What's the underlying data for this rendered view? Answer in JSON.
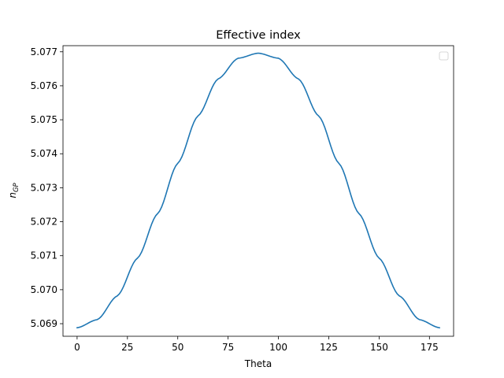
{
  "chart_data": {
    "type": "line",
    "title": "Effective index",
    "xlabel": "Theta",
    "ylabel_base": "n",
    "ylabel_sub": "GP",
    "xlim": [
      -7,
      187
    ],
    "ylim": [
      5.06863,
      5.07718
    ],
    "xticks": [
      0,
      25,
      50,
      75,
      100,
      125,
      150,
      175
    ],
    "xtick_labels": [
      "0",
      "25",
      "50",
      "75",
      "100",
      "125",
      "150",
      "175"
    ],
    "yticks": [
      5.069,
      5.07,
      5.071,
      5.072,
      5.073,
      5.074,
      5.075,
      5.076,
      5.077
    ],
    "ytick_labels": [
      "5.069",
      "5.070",
      "5.071",
      "5.072",
      "5.073",
      "5.074",
      "5.075",
      "5.076",
      "5.077"
    ],
    "grid": false,
    "legend": {
      "placement": "top-right",
      "entries": []
    },
    "series": [
      {
        "color": "#1f77b4",
        "x": [
          0,
          10,
          20,
          30,
          40,
          50,
          60,
          70,
          80,
          90,
          100,
          110,
          120,
          130,
          140,
          150,
          160,
          170,
          180
        ],
        "y": [
          5.06888,
          5.06912,
          5.06982,
          5.07093,
          5.07224,
          5.07372,
          5.07511,
          5.0762,
          5.07681,
          5.07696,
          5.07681,
          5.0762,
          5.07511,
          5.07372,
          5.07224,
          5.07093,
          5.06982,
          5.06912,
          5.06888
        ]
      }
    ]
  }
}
